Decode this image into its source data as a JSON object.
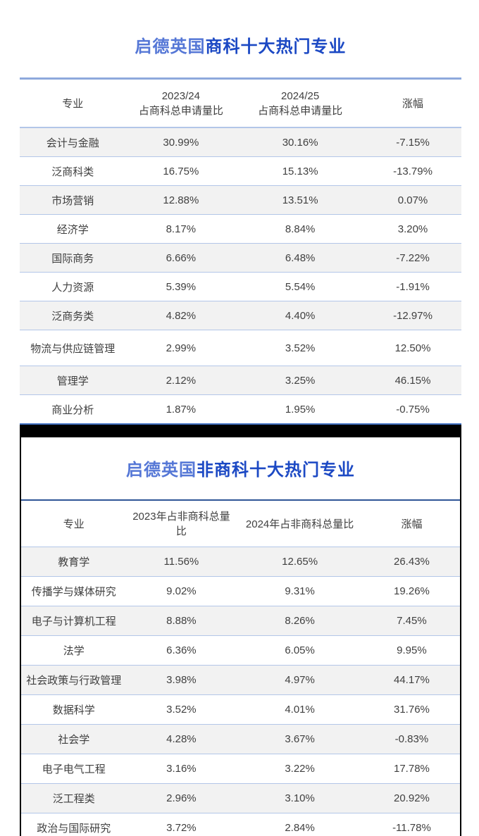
{
  "colors": {
    "title_brand_blue": "#5577d6",
    "title_accent_blue": "#1c49c4",
    "table_top_border_blue": "#8ea9dc",
    "table_bottom_border_blue": "#4472c4",
    "table2_top_border_blue": "#2f5597",
    "separator_blue": "#b3c6e8",
    "row_shade_gray": "#f2f2f2",
    "divider_black": "#000000",
    "text_gray": "#404040"
  },
  "table1": {
    "title": {
      "brand": "启德英国",
      "rest": "商科十大热门专业"
    },
    "headers": {
      "major": "专业",
      "col2_top": "2023/24",
      "col2_bottom": "占商科总申请量比",
      "col3_top": "2024/25",
      "col3_bottom": "占商科总申请量比",
      "change": "涨幅"
    },
    "rows": [
      [
        "会计与金融",
        "30.99%",
        "30.16%",
        "-7.15%"
      ],
      [
        "泛商科类",
        "16.75%",
        "15.13%",
        "-13.79%"
      ],
      [
        "市场营销",
        "12.88%",
        "13.51%",
        "0.07%"
      ],
      [
        "经济学",
        "8.17%",
        "8.84%",
        "3.20%"
      ],
      [
        "国际商务",
        "6.66%",
        "6.48%",
        "-7.22%"
      ],
      [
        "人力资源",
        "5.39%",
        "5.54%",
        "-1.91%"
      ],
      [
        "泛商务类",
        "4.82%",
        "4.40%",
        "-12.97%"
      ],
      [
        "物流与供应链管理",
        "2.99%",
        "3.52%",
        "12.50%"
      ],
      [
        "管理学",
        "2.12%",
        "3.25%",
        "46.15%"
      ],
      [
        "商业分析",
        "1.87%",
        "1.95%",
        "-0.75%"
      ]
    ]
  },
  "table2": {
    "title": {
      "brand": "启德英国",
      "rest": "非商科十大热门专业"
    },
    "headers": {
      "major": "专业",
      "col2": "2023年占非商科总量比",
      "col3": "2024年占非商科总量比",
      "change": "涨幅"
    },
    "rows": [
      [
        "教育学",
        "11.56%",
        "12.65%",
        "26.43%"
      ],
      [
        "传播学与媒体研究",
        "9.02%",
        "9.31%",
        "19.26%"
      ],
      [
        "电子与计算机工程",
        "8.88%",
        "8.26%",
        "7.45%"
      ],
      [
        "法学",
        "6.36%",
        "6.05%",
        "9.95%"
      ],
      [
        "社会政策与行政管理",
        "3.98%",
        "4.97%",
        "44.17%"
      ],
      [
        "数据科学",
        "3.52%",
        "4.01%",
        "31.76%"
      ],
      [
        "社会学",
        "4.28%",
        "3.67%",
        "-0.83%"
      ],
      [
        "电子电气工程",
        "3.16%",
        "3.22%",
        "17.78%"
      ],
      [
        "泛工程类",
        "2.96%",
        "3.10%",
        "20.92%"
      ],
      [
        "政治与国际研究",
        "3.72%",
        "2.84%",
        "-11.78%"
      ]
    ]
  }
}
